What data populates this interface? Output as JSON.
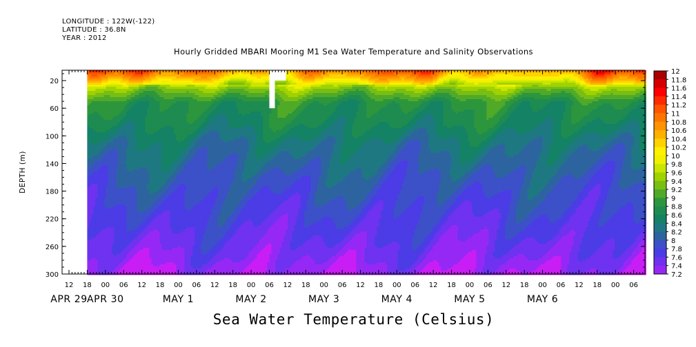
{
  "header": {
    "longitude": "LONGITUDE : 122W(-122)",
    "latitude": "LATITUDE : 36.8N",
    "year": "YEAR : 2012"
  },
  "chart_data": {
    "type": "heatmap",
    "title": "Hourly Gridded MBARI Mooring M1 Sea Water Temperature and Salinity Observations",
    "colorbar_label": "Sea Water Temperature (Celsius)",
    "ylabel": "DEPTH (m)",
    "y_ticks": [
      20,
      60,
      100,
      140,
      180,
      220,
      260,
      300
    ],
    "ylim": [
      300,
      5
    ],
    "x_hour_ticks": [
      "12",
      "18",
      "00",
      "06",
      "12",
      "18",
      "00",
      "06",
      "12",
      "18",
      "00",
      "06",
      "12",
      "18",
      "00",
      "06",
      "12",
      "18",
      "00",
      "06",
      "12",
      "18",
      "00",
      "06",
      "12",
      "18",
      "00",
      "06",
      "12",
      "18",
      "00",
      "06"
    ],
    "x_date_labels": [
      "APR 29",
      "APR 30",
      "MAY  1",
      "MAY  2",
      "MAY  3",
      "MAY  4",
      "MAY  5",
      "MAY  6"
    ],
    "data_start": "APR 29 18:00",
    "colorbar_levels": [
      12,
      11.8,
      11.6,
      11.4,
      11.2,
      11,
      10.8,
      10.6,
      10.4,
      10.2,
      10,
      9.8,
      9.6,
      9.4,
      9.2,
      9,
      8.8,
      8.6,
      8.4,
      8.2,
      8,
      7.8,
      7.6,
      7.4,
      7.2
    ],
    "colorbar_colors": [
      "#aa0000",
      "#d40000",
      "#ff0000",
      "#ff2a00",
      "#ff5500",
      "#ff7400",
      "#ff9200",
      "#ffb000",
      "#ffd200",
      "#ffef00",
      "#f0f000",
      "#c8e600",
      "#a0d200",
      "#78be14",
      "#50aa28",
      "#2d963c",
      "#1e8c50",
      "#148264",
      "#1e7882",
      "#2d64a0",
      "#3c50c8",
      "#4b3ce6",
      "#6e32f0",
      "#9628f5",
      "#c81ef5"
    ],
    "depth_profile": [
      {
        "depth": 5,
        "value": 11.0
      },
      {
        "depth": 15,
        "value": 10.5
      },
      {
        "depth": 30,
        "value": 9.6
      },
      {
        "depth": 50,
        "value": 9.0
      },
      {
        "depth": 80,
        "value": 8.8
      },
      {
        "depth": 110,
        "value": 8.5
      },
      {
        "depth": 160,
        "value": 8.2
      },
      {
        "depth": 200,
        "value": 8.0
      },
      {
        "depth": 240,
        "value": 7.8
      },
      {
        "depth": 275,
        "value": 7.6
      },
      {
        "depth": 300,
        "value": 7.4
      }
    ]
  }
}
